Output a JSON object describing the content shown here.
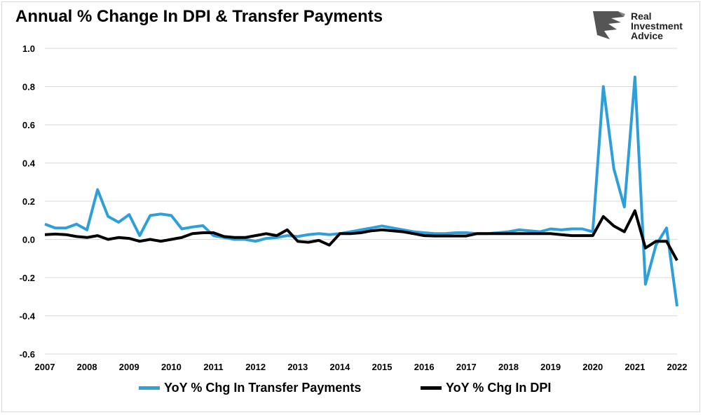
{
  "title": "Annual % Change In DPI & Transfer Payments",
  "logo": {
    "lines": [
      "Real",
      "Investment",
      "Advice"
    ],
    "icon": "eagle-icon"
  },
  "chart_data": {
    "type": "line",
    "title": "Annual % Change In DPI & Transfer Payments",
    "xlabel": "",
    "ylabel": "",
    "xlim": [
      2007,
      2022
    ],
    "ylim": [
      -0.6,
      1.0
    ],
    "x_ticks": [
      "2007",
      "2008",
      "2009",
      "2010",
      "2011",
      "2012",
      "2013",
      "2014",
      "2015",
      "2016",
      "2017",
      "2018",
      "2019",
      "2020",
      "2021",
      "2022"
    ],
    "y_ticks": [
      "1.0",
      "0.8",
      "0.6",
      "0.4",
      "0.2",
      "0.0",
      "-0.2",
      "-0.4",
      "-0.6"
    ],
    "grid": "horizontal",
    "legend_position": "bottom",
    "x": [
      2007.0,
      2007.25,
      2007.5,
      2007.75,
      2008.0,
      2008.25,
      2008.5,
      2008.75,
      2009.0,
      2009.25,
      2009.5,
      2009.75,
      2010.0,
      2010.25,
      2010.5,
      2010.75,
      2011.0,
      2011.25,
      2011.5,
      2011.75,
      2012.0,
      2012.25,
      2012.5,
      2012.75,
      2013.0,
      2013.25,
      2013.5,
      2013.75,
      2014.0,
      2014.25,
      2014.5,
      2014.75,
      2015.0,
      2015.25,
      2015.5,
      2015.75,
      2016.0,
      2016.25,
      2016.5,
      2016.75,
      2017.0,
      2017.25,
      2017.5,
      2017.75,
      2018.0,
      2018.25,
      2018.5,
      2018.75,
      2019.0,
      2019.25,
      2019.5,
      2019.75,
      2020.0,
      2020.25,
      2020.5,
      2020.75,
      2021.0,
      2021.25,
      2021.5,
      2021.75,
      2022.0
    ],
    "series": [
      {
        "name": "YoY % Chg In Transfer Payments",
        "color": "#2e9fd8",
        "values": [
          0.08,
          0.06,
          0.06,
          0.08,
          0.05,
          0.26,
          0.12,
          0.09,
          0.13,
          0.02,
          0.125,
          0.133,
          0.125,
          0.055,
          0.065,
          0.072,
          0.02,
          0.01,
          0.0,
          0.0,
          -0.01,
          0.005,
          0.01,
          0.02,
          0.015,
          0.025,
          0.03,
          0.025,
          0.03,
          0.04,
          0.05,
          0.06,
          0.07,
          0.06,
          0.05,
          0.04,
          0.035,
          0.03,
          0.03,
          0.035,
          0.035,
          0.03,
          0.03,
          0.035,
          0.04,
          0.05,
          0.045,
          0.04,
          0.055,
          0.05,
          0.055,
          0.055,
          0.04,
          0.8,
          0.37,
          0.17,
          0.85,
          -0.235,
          -0.03,
          0.06,
          -0.35
        ]
      },
      {
        "name": "YoY % Chg In DPI",
        "color": "#000000",
        "values": [
          0.025,
          0.028,
          0.025,
          0.015,
          0.01,
          0.02,
          0.0,
          0.01,
          0.005,
          -0.01,
          0.0,
          -0.01,
          0.0,
          0.01,
          0.03,
          0.035,
          0.035,
          0.015,
          0.01,
          0.01,
          0.02,
          0.03,
          0.02,
          0.05,
          -0.01,
          -0.015,
          -0.005,
          -0.03,
          0.03,
          0.03,
          0.035,
          0.045,
          0.05,
          0.045,
          0.04,
          0.03,
          0.02,
          0.018,
          0.018,
          0.018,
          0.018,
          0.03,
          0.03,
          0.03,
          0.03,
          0.03,
          0.03,
          0.03,
          0.03,
          0.025,
          0.02,
          0.02,
          0.02,
          0.12,
          0.07,
          0.04,
          0.15,
          -0.045,
          -0.01,
          -0.01,
          -0.11
        ]
      }
    ]
  }
}
